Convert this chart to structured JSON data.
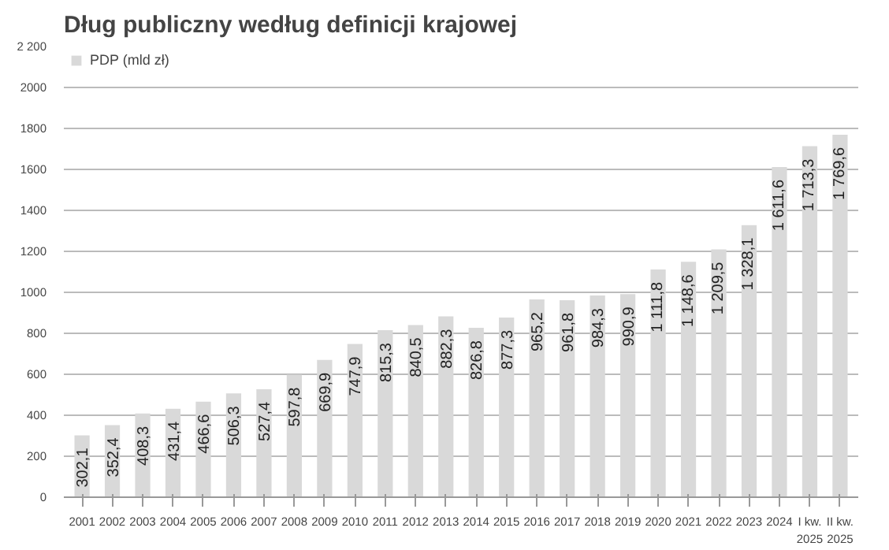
{
  "chart_data": {
    "type": "bar",
    "title": "Dług publiczny według definicji krajowej",
    "categories": [
      "2001",
      "2002",
      "2003",
      "2004",
      "2005",
      "2006",
      "2007",
      "2008",
      "2009",
      "2010",
      "2011",
      "2012",
      "2013",
      "2014",
      "2015",
      "2016",
      "2017",
      "2018",
      "2019",
      "2020",
      "2021",
      "2022",
      "2023",
      "2024",
      "I kw.\n2025",
      "II kw.\n2025"
    ],
    "series": [
      {
        "name": "PDP (mld zł)",
        "color": "#d9d9d9",
        "values": [
          302.1,
          352.4,
          408.3,
          431.4,
          466.6,
          506.3,
          527.4,
          597.8,
          669.9,
          747.9,
          815.3,
          840.5,
          882.3,
          826.8,
          877.3,
          965.2,
          961.8,
          984.3,
          990.9,
          1111.8,
          1148.6,
          1209.5,
          1328.1,
          1611.6,
          1713.3,
          1769.6
        ],
        "value_labels": [
          "302,1",
          "352,4",
          "408,3",
          "431,4",
          "466,6",
          "506,3",
          "527,4",
          "597,8",
          "669,9",
          "747,9",
          "815,3",
          "840,5",
          "882,3",
          "826,8",
          "877,3",
          "965,2",
          "961,8",
          "984,3",
          "990,9",
          "1 111,8",
          "1 148,6",
          "1 209,5",
          "1 328,1",
          "1 611,6",
          "1 713,3",
          "1 769,6"
        ]
      }
    ],
    "ylim": [
      0,
      2200
    ],
    "yticks": [
      0,
      200,
      400,
      600,
      800,
      1000,
      1200,
      1400,
      1600,
      1800,
      2000,
      {
        "value": 2200,
        "label": "2 200"
      }
    ],
    "grid": "y",
    "legend": "top left"
  }
}
